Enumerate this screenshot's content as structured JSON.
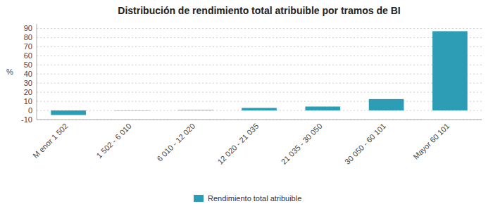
{
  "chart_data": {
    "type": "bar",
    "title": "Distribución de rendimiento total atribuible por tramos de BI",
    "ylabel": "%",
    "categories": [
      "M enor 1 502",
      "1 502 - 6 010",
      "6 010 - 12 020",
      "12 020 - 21 035",
      "21 035 - 30 050",
      "30 050 - 60 101",
      "Mayor 60 101"
    ],
    "series": [
      {
        "name": "Rendimiento total atribuible",
        "color": "#2D9DB5",
        "colors": [
          "#2D9DB5",
          "#888888",
          "#888888",
          "#2D9DB5",
          "#2D9DB5",
          "#2D9DB5",
          "#2D9DB5"
        ],
        "values": [
          -5.0,
          -0.3,
          0.5,
          2.8,
          4.3,
          12.5,
          87.0
        ]
      }
    ],
    "ylim": [
      -10,
      95
    ],
    "yticks": [
      -10,
      0,
      10,
      20,
      30,
      40,
      50,
      60,
      70,
      80,
      90
    ],
    "grid": true,
    "legend": "bottom"
  }
}
